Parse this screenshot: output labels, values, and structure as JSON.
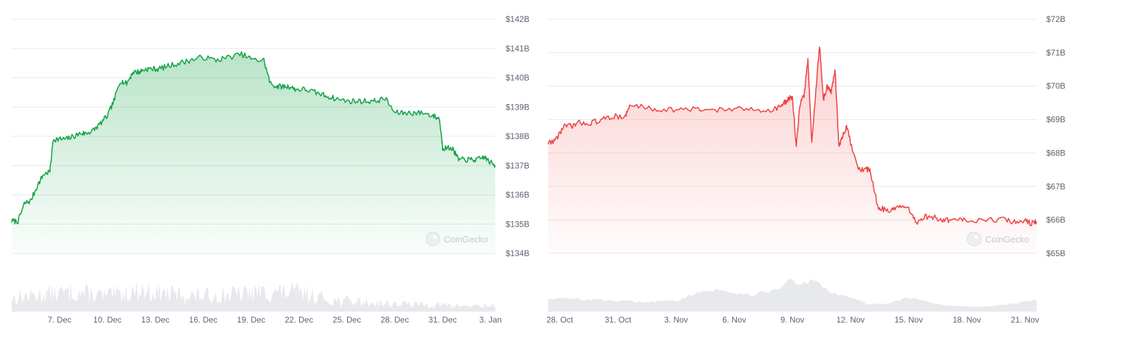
{
  "watermark_text": "CoinGecko",
  "chart_data": [
    {
      "type": "area",
      "title": "",
      "xlabel": "",
      "ylabel": "",
      "color": "#16a34a",
      "fill_color": "#16a34a",
      "grid": true,
      "y_axis_side": "right",
      "ylim": [
        134,
        142
      ],
      "y_ticks": [
        142,
        141,
        140,
        139,
        138,
        137,
        136,
        135,
        134
      ],
      "y_tick_labels": [
        "$142B",
        "$141B",
        "$140B",
        "$139B",
        "$138B",
        "$137B",
        "$136B",
        "$135B",
        "$134B"
      ],
      "x_tick_labels": [
        "7. Dec",
        "10. Dec",
        "13. Dec",
        "16. Dec",
        "19. Dec",
        "22. Dec",
        "25. Dec",
        "28. Dec",
        "31. Dec",
        "3. Jan"
      ],
      "x_ticks_day": [
        3,
        6,
        9,
        12,
        15,
        18,
        21,
        24,
        27,
        30
      ],
      "xlim_day": [
        0,
        30.3
      ],
      "series": [
        {
          "x": [
            0,
            0.4,
            0.8,
            1.2,
            1.6,
            2.0,
            2.4,
            2.6,
            3.0,
            3.4,
            3.9,
            4.3,
            4.7,
            5.1,
            5.5,
            6.0,
            6.4,
            6.8,
            7.2,
            7.6,
            8.0,
            8.4,
            8.8,
            9.2,
            9.8,
            10.5,
            11.2,
            12.0,
            12.8,
            13.6,
            14.4,
            15.2,
            15.8,
            16.2,
            16.6,
            17.0,
            17.4,
            17.8,
            18.4,
            19.0,
            19.6,
            20.2,
            21.0,
            21.6,
            22.2,
            22.8,
            23.4,
            24.0,
            24.6,
            25.2,
            25.8,
            26.4,
            26.8,
            27.0,
            27.2,
            27.6,
            28.0,
            28.4,
            28.8,
            29.2,
            29.6,
            30.0,
            30.3
          ],
          "y": [
            135.1,
            135.1,
            135.7,
            135.8,
            136.3,
            136.7,
            136.8,
            137.9,
            137.9,
            137.9,
            138.0,
            138.1,
            138.1,
            138.2,
            138.4,
            138.7,
            139.2,
            139.9,
            139.8,
            140.2,
            140.2,
            140.3,
            140.3,
            140.3,
            140.4,
            140.5,
            140.6,
            140.7,
            140.6,
            140.7,
            140.8,
            140.6,
            140.6,
            139.8,
            139.7,
            139.7,
            139.7,
            139.6,
            139.6,
            139.5,
            139.4,
            139.3,
            139.2,
            139.2,
            139.2,
            139.2,
            139.3,
            138.8,
            138.8,
            138.8,
            138.8,
            138.7,
            138.6,
            137.6,
            137.6,
            137.6,
            137.2,
            137.2,
            137.2,
            137.2,
            137.3,
            137.1,
            137.0
          ]
        }
      ],
      "volume": {
        "x": [
          0,
          2,
          4,
          6,
          8,
          10,
          12,
          14,
          16,
          18,
          20,
          22,
          24,
          26,
          28,
          30.3
        ],
        "values": [
          0.35,
          0.45,
          0.5,
          0.4,
          0.55,
          0.45,
          0.4,
          0.45,
          0.5,
          0.5,
          0.3,
          0.25,
          0.2,
          0.18,
          0.15,
          0.15
        ]
      }
    },
    {
      "type": "area",
      "title": "",
      "xlabel": "",
      "ylabel": "",
      "color": "#ef4444",
      "fill_color": "#ef4444",
      "grid": true,
      "y_axis_side": "right",
      "ylim": [
        65,
        72
      ],
      "y_ticks": [
        72,
        71,
        70,
        69,
        68,
        67,
        66,
        65
      ],
      "y_tick_labels": [
        "$72B",
        "$71B",
        "$70B",
        "$69B",
        "$68B",
        "$67B",
        "$66B",
        "$65B"
      ],
      "x_tick_labels": [
        "28. Oct",
        "31. Oct",
        "3. Nov",
        "6. Nov",
        "9. Nov",
        "12. Nov",
        "15. Nov",
        "18. Nov",
        "21. Nov"
      ],
      "x_ticks_day": [
        0,
        3,
        6,
        9,
        12,
        15,
        18,
        21,
        24
      ],
      "xlim_day": [
        -0.6,
        24.6
      ],
      "series": [
        {
          "x": [
            -0.6,
            -0.2,
            0.2,
            0.6,
            1.0,
            1.6,
            2.2,
            2.8,
            3.4,
            3.6,
            4.2,
            5.0,
            6.0,
            7.0,
            8.0,
            9.0,
            10.0,
            11.0,
            11.4,
            11.6,
            11.8,
            12.0,
            12.2,
            12.4,
            12.6,
            12.8,
            13.0,
            13.2,
            13.4,
            13.6,
            13.8,
            14.0,
            14.2,
            14.4,
            14.6,
            14.8,
            15.0,
            15.4,
            15.8,
            16.0,
            16.4,
            16.8,
            17.2,
            17.6,
            18.0,
            18.4,
            18.8,
            19.2,
            19.6,
            20.0,
            20.4,
            21.0,
            22.0,
            23.0,
            23.6,
            24.0,
            24.3,
            24.6
          ],
          "y": [
            68.3,
            68.4,
            68.8,
            68.8,
            68.9,
            68.9,
            69.0,
            69.1,
            69.1,
            69.4,
            69.4,
            69.3,
            69.3,
            69.3,
            69.3,
            69.3,
            69.3,
            69.3,
            69.4,
            69.5,
            69.6,
            69.7,
            68.2,
            69.5,
            69.7,
            70.8,
            68.3,
            69.8,
            71.2,
            69.6,
            70.0,
            69.8,
            70.5,
            68.2,
            68.5,
            68.8,
            68.3,
            67.5,
            67.5,
            67.5,
            66.4,
            66.3,
            66.3,
            66.4,
            66.3,
            65.9,
            66.1,
            66.1,
            66.0,
            66.0,
            66.0,
            66.0,
            66.0,
            66.0,
            65.9,
            66.0,
            65.9,
            65.95
          ]
        }
      ],
      "volume": {
        "x": [
          -0.6,
          2,
          4,
          6,
          7,
          8,
          10,
          11,
          12,
          12.5,
          13,
          14,
          15,
          16,
          17,
          18,
          19,
          20,
          22,
          24,
          24.6
        ],
        "values": [
          0.28,
          0.25,
          0.2,
          0.22,
          0.4,
          0.45,
          0.35,
          0.45,
          0.65,
          0.55,
          0.65,
          0.4,
          0.28,
          0.15,
          0.18,
          0.3,
          0.2,
          0.12,
          0.1,
          0.2,
          0.25
        ]
      }
    }
  ]
}
